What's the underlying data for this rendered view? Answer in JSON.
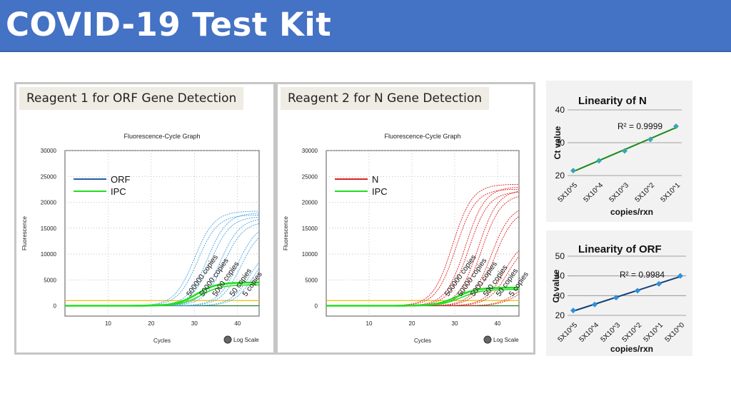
{
  "header": {
    "title": "COVID-19 Test Kit"
  },
  "colors": {
    "accent": "#4472c4",
    "orf": "#1f5fa8",
    "n": "#e02020",
    "ipc": "#22dd22",
    "threshold": "#e8c000",
    "fit_green": "#2e8b2e"
  },
  "panels": [
    {
      "header": "Reagent 1 for ORF Gene Detection",
      "graph_title": "Fluorescence-Cycle Graph",
      "xlabel": "Cycles",
      "ylabel": "Fluorescence",
      "log_scale_label": "Log Scale",
      "chart_data": {
        "type": "line",
        "title": "Fluorescence-Cycle Graph",
        "xlabel": "Cycles",
        "ylabel": "Fluorescence",
        "xlim": [
          0,
          45
        ],
        "ylim": [
          -2000,
          30000
        ],
        "xticks": [
          10,
          20,
          30,
          40
        ],
        "yticks": [
          0,
          5000,
          10000,
          15000,
          20000,
          25000,
          30000
        ],
        "legend": [
          {
            "name": "ORF",
            "color": "#1f5fa8"
          },
          {
            "name": "IPC",
            "color": "#22dd22"
          }
        ],
        "legend_position": "top-left",
        "threshold": 1000,
        "amplification": [
          {
            "label": "500000 copies",
            "ct": 25.5,
            "plateau": 18300
          },
          {
            "label": "50000 copies",
            "ct": 28.5,
            "plateau": 18000
          },
          {
            "label": "5000 copies",
            "ct": 31.5,
            "plateau": 17000
          },
          {
            "label": "50 copies",
            "ct": 35.5,
            "plateau": 16000
          },
          {
            "label": "5 copies",
            "ct": 38.5,
            "plateau": 12000
          }
        ],
        "ipc_plateau": 4500
      }
    },
    {
      "header": "Reagent 2 for N Gene Detection",
      "graph_title": "Fluorescence-Cycle Graph",
      "xlabel": "Cycles",
      "ylabel": "Fluorescence",
      "log_scale_label": "Log Scale",
      "chart_data": {
        "type": "line",
        "title": "Fluorescence-Cycle Graph",
        "xlabel": "Cycles",
        "ylabel": "Fluorescence",
        "xlim": [
          0,
          45
        ],
        "ylim": [
          -2000,
          30000
        ],
        "xticks": [
          10,
          20,
          30,
          40
        ],
        "yticks": [
          0,
          5000,
          10000,
          15000,
          20000,
          25000,
          30000
        ],
        "legend": [
          {
            "name": "N",
            "color": "#e02020"
          },
          {
            "name": "IPC",
            "color": "#22dd22"
          }
        ],
        "legend_position": "top-left",
        "threshold": 1000,
        "amplification": [
          {
            "label": "500000 copies",
            "ct": 25,
            "plateau": 23500
          },
          {
            "label": "50000 copies",
            "ct": 28,
            "plateau": 23000
          },
          {
            "label": "5000 copies",
            "ct": 31,
            "plateau": 22500
          },
          {
            "label": "500 copies",
            "ct": 34,
            "plateau": 19500
          },
          {
            "label": "50 copies",
            "ct": 37,
            "plateau": 13000
          },
          {
            "label": "5 copies",
            "ct": 40,
            "plateau": 5000
          }
        ],
        "ipc_plateau": 3500
      }
    }
  ],
  "linearity": [
    {
      "title": "Linearity of N",
      "r2_label": "R² = 0.9999",
      "ylabel": "Ct value",
      "xlabel": "copies/rxn",
      "chart_data": {
        "type": "scatter",
        "title": "Linearity of N",
        "xlabel": "copies/rxn",
        "ylabel": "Ct value",
        "categories": [
          "5X10^5",
          "5X10^4",
          "5X10^3",
          "5X10^2",
          "5X10^1"
        ],
        "values": [
          21.5,
          24.5,
          27.5,
          31,
          35
        ],
        "ylim": [
          20,
          40
        ],
        "yticks": [
          20,
          30,
          40
        ],
        "r_squared": 0.9999,
        "color": "#2e8b2e"
      }
    },
    {
      "title": "Linearity of ORF",
      "r2_label": "R² = 0.9984",
      "ylabel": "Ct value",
      "xlabel": "copies/rxn",
      "chart_data": {
        "type": "scatter",
        "title": "Linearity of ORF",
        "xlabel": "copies/rxn",
        "ylabel": "Ct value",
        "categories": [
          "5X10^5",
          "5X10^4",
          "5X10^3",
          "5X10^2",
          "5X10^1",
          "5X10^0"
        ],
        "values": [
          22.5,
          25.5,
          29,
          32.5,
          36,
          40
        ],
        "ylim": [
          20,
          50
        ],
        "yticks": [
          20,
          30,
          40,
          50
        ],
        "r_squared": 0.9984,
        "color": "#1f5fa8"
      }
    }
  ]
}
